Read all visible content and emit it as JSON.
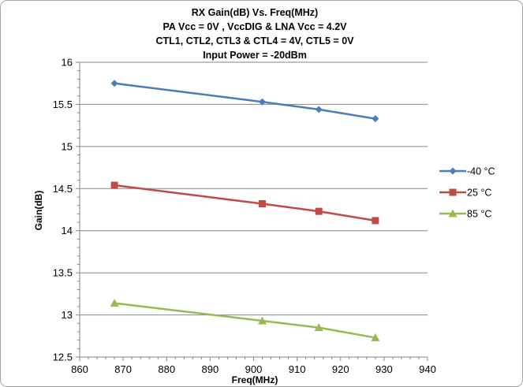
{
  "chart_data": {
    "type": "line",
    "title": [
      "RX Gain(dB) Vs. Freq(MHz)",
      "PA Vcc = 0V , VccDIG & LNA Vcc = 4.2V",
      "CTL1, CTL2, CTL3 & CTL4 = 4V, CTL5 = 0V",
      "Input Power = -20dBm"
    ],
    "xlabel": "Freq(MHz)",
    "ylabel": "Gain(dB)",
    "xlim": [
      860,
      940
    ],
    "ylim": [
      12.5,
      16
    ],
    "x_ticks": [
      "860",
      "870",
      "880",
      "890",
      "900",
      "910",
      "920",
      "930",
      "940"
    ],
    "y_ticks": [
      "12.5",
      "13",
      "13.5",
      "14",
      "14.5",
      "15",
      "15.5",
      "16"
    ],
    "grid": "horizontal major gridlines",
    "legend_position": "right",
    "x": [
      868,
      902,
      915,
      928
    ],
    "series": [
      {
        "name": "-40 °C",
        "values": [
          15.75,
          15.53,
          15.44,
          15.33
        ],
        "color": "#4a7ebb",
        "marker": "diamond"
      },
      {
        "name": "25 °C",
        "values": [
          14.54,
          14.32,
          14.23,
          14.12
        ],
        "color": "#be4b48",
        "marker": "square"
      },
      {
        "name": "85 °C",
        "values": [
          13.14,
          12.93,
          12.85,
          12.73
        ],
        "color": "#98b954",
        "marker": "triangle"
      }
    ]
  }
}
